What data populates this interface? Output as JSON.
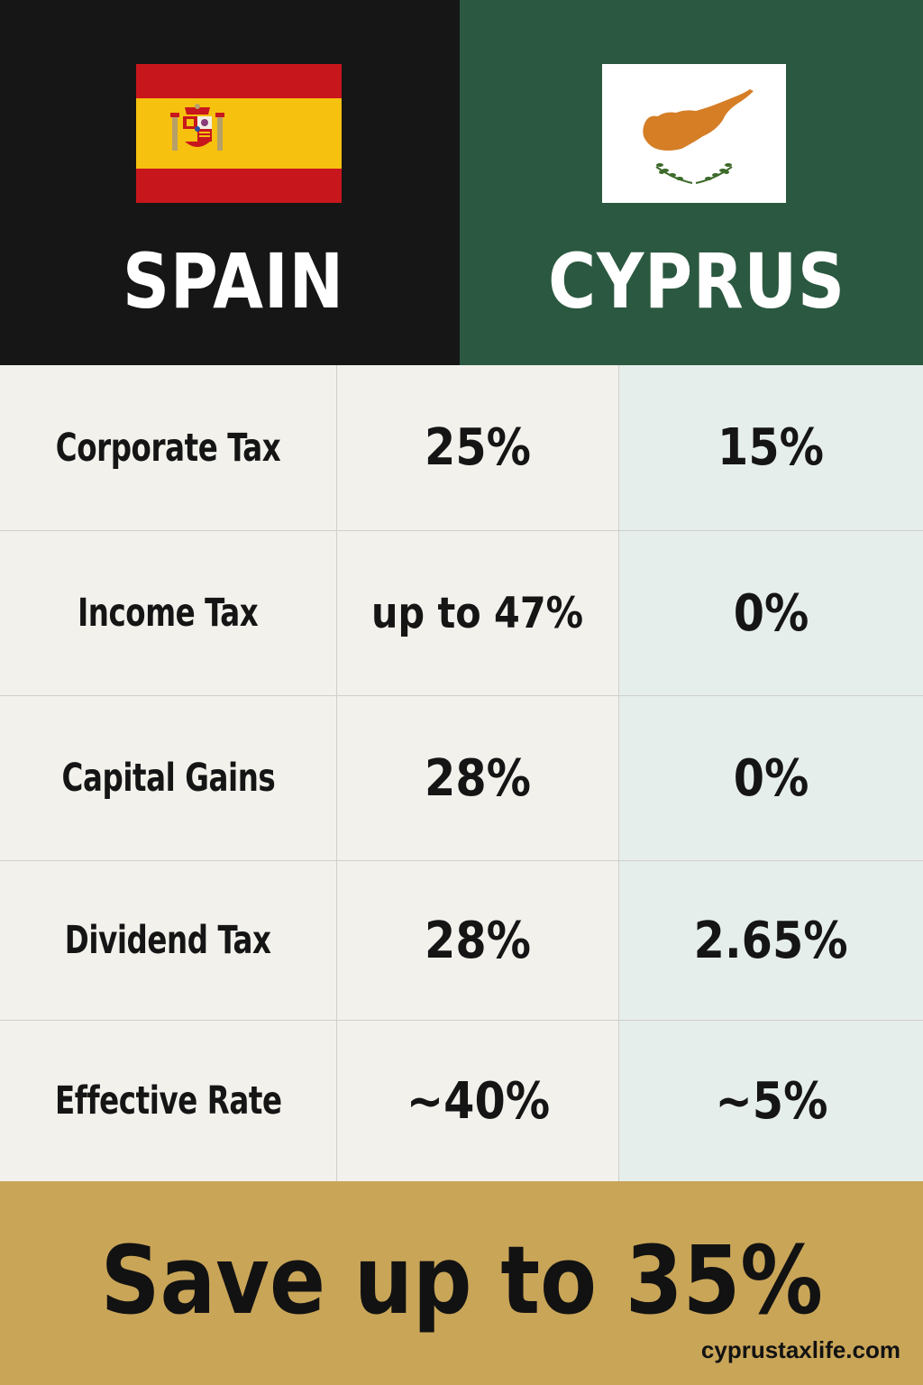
{
  "header": {
    "left": {
      "country": "SPAIN",
      "flag_icon": "spain-flag-icon",
      "background": "#161616"
    },
    "right": {
      "country": "CYPRUS",
      "flag_icon": "cyprus-flag-icon",
      "background": "#2b5840"
    }
  },
  "table": {
    "rows": [
      {
        "label": "Corporate Tax",
        "spain": "25%",
        "cyprus": "15%"
      },
      {
        "label": "Income Tax",
        "spain": "up to 47%",
        "cyprus": "0%"
      },
      {
        "label": "Capital Gains",
        "spain": "28%",
        "cyprus": "0%"
      },
      {
        "label": "Dividend Tax",
        "spain": "28%",
        "cyprus": "2.65%"
      },
      {
        "label": "Effective Rate",
        "spain": "~40%",
        "cyprus": "~5%"
      }
    ]
  },
  "footer": {
    "headline": "Save up to 35%",
    "site": "cyprustaxlife.com",
    "background": "#c9a558"
  }
}
